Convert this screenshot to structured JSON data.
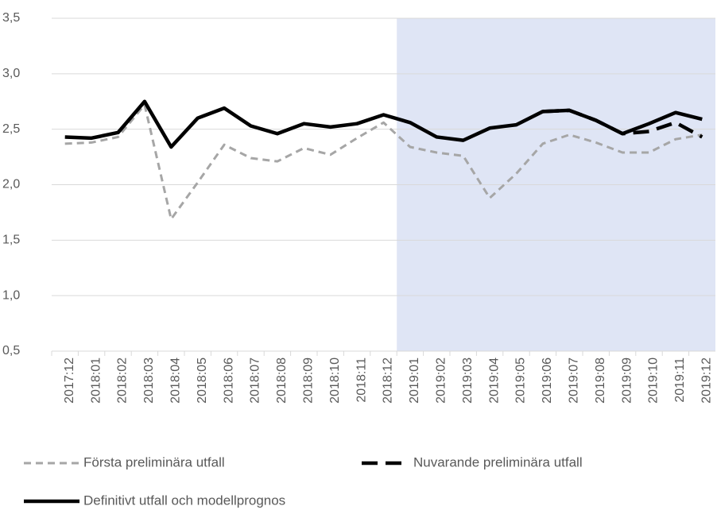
{
  "chart_data": {
    "type": "line",
    "categories": [
      "2017:12",
      "2018:01",
      "2018:02",
      "2018:03",
      "2018:04",
      "2018:05",
      "2018:06",
      "2018:07",
      "2018:08",
      "2018:09",
      "2018:10",
      "2018:11",
      "2018:12",
      "2019:01",
      "2019:02",
      "2019:03",
      "2019:04",
      "2019:05",
      "2019:06",
      "2019:07",
      "2019:08",
      "2019:09",
      "2019:10",
      "2019:11",
      "2019:12"
    ],
    "series": [
      {
        "name": "Första preliminära utfall",
        "color": "#a6a6a6",
        "dash": "9,6",
        "values": [
          2.37,
          2.38,
          2.43,
          2.72,
          1.69,
          2.02,
          2.36,
          2.24,
          2.21,
          2.33,
          2.27,
          2.42,
          2.56,
          2.34,
          2.29,
          2.26,
          1.88,
          2.1,
          2.37,
          2.45,
          2.38,
          2.29,
          2.29,
          2.41,
          2.45
        ]
      },
      {
        "name": "Nuvarande preliminära utfall",
        "color": "#000000",
        "dash": "20,10",
        "values": [
          null,
          null,
          null,
          null,
          null,
          null,
          null,
          null,
          null,
          null,
          null,
          null,
          null,
          null,
          null,
          null,
          null,
          null,
          2.66,
          2.67,
          2.58,
          2.46,
          2.48,
          2.56,
          2.43
        ]
      },
      {
        "name": "Definitivt utfall och modellprognos",
        "color": "#000000",
        "dash": "none",
        "values": [
          2.43,
          2.42,
          2.47,
          2.75,
          2.34,
          2.6,
          2.69,
          2.53,
          2.46,
          2.55,
          2.52,
          2.55,
          2.63,
          2.56,
          2.43,
          2.4,
          2.51,
          2.54,
          2.66,
          2.67,
          2.58,
          2.46,
          2.55,
          2.65,
          2.59
        ]
      }
    ],
    "ylim": [
      0.5,
      3.5
    ],
    "yticks": [
      {
        "value": 0.5,
        "label": "0,5"
      },
      {
        "value": 1.0,
        "label": "1,0"
      },
      {
        "value": 1.5,
        "label": "1,5"
      },
      {
        "value": 2.0,
        "label": "2,0"
      },
      {
        "value": 2.5,
        "label": "2,5"
      },
      {
        "value": 3.0,
        "label": "3,0"
      },
      {
        "value": 3.5,
        "label": "3,5"
      }
    ],
    "grid": true,
    "shaded_range": [
      "2019:01",
      "2019:12"
    ],
    "shade_color": "#dfe5f5",
    "legend": "bottom"
  }
}
